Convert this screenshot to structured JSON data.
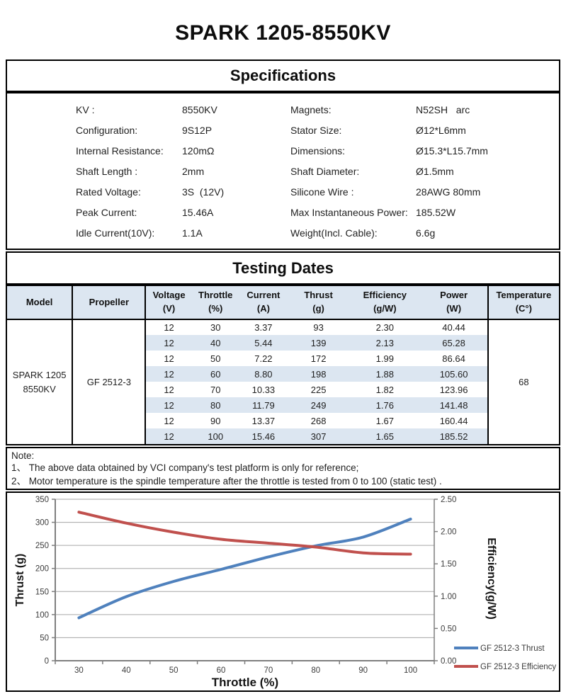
{
  "page_title": "SPARK 1205-8550KV",
  "specifications": {
    "section_title": "Specifications",
    "rows": [
      {
        "l_label": "KV :",
        "l_value": "8550KV",
        "r_label": "Magnets:",
        "r_value": "N52SH   arc"
      },
      {
        "l_label": "Configuration:",
        "l_value": "9S12P",
        "r_label": "Stator Size:",
        "r_value": "Ø12*L6mm"
      },
      {
        "l_label": "Internal Resistance:",
        "l_value": "120mΩ",
        "r_label": "Dimensions:",
        "r_value": "Ø15.3*L15.7mm"
      },
      {
        "l_label": "Shaft Length :",
        "l_value": "2mm",
        "r_label": "Shaft Diameter:",
        "r_value": "Ø1.5mm"
      },
      {
        "l_label": "Rated Voltage:",
        "l_value": "3S  (12V)",
        "r_label": "Silicone Wire :",
        "r_value": "28AWG 80mm"
      },
      {
        "l_label": "Peak Current:",
        "l_value": "15.46A",
        "r_label": "Max Instantaneous Power:",
        "r_value": "185.52W"
      },
      {
        "l_label": "Idle Current(10V):",
        "l_value": "1.1A",
        "r_label": "Weight(Incl. Cable):",
        "r_value": "6.6g"
      }
    ]
  },
  "testing": {
    "section_title": "Testing Dates",
    "headers": [
      {
        "l1": "Model",
        "l2": ""
      },
      {
        "l1": "Propeller",
        "l2": ""
      },
      {
        "l1": "Voltage",
        "l2": "(V)"
      },
      {
        "l1": "Throttle",
        "l2": "(%)"
      },
      {
        "l1": "Current",
        "l2": "(A)"
      },
      {
        "l1": "Thrust",
        "l2": "(g)"
      },
      {
        "l1": "Efficiency",
        "l2": "(g/W)"
      },
      {
        "l1": "Power",
        "l2": "(W)"
      },
      {
        "l1": "Temperature",
        "l2": "(C°)"
      }
    ],
    "model_lines": [
      "SPARK 1205",
      "8550KV"
    ],
    "propeller": "GF 2512-3",
    "temperature": "68",
    "rows": [
      [
        "12",
        "30",
        "3.37",
        "93",
        "2.30",
        "40.44"
      ],
      [
        "12",
        "40",
        "5.44",
        "139",
        "2.13",
        "65.28"
      ],
      [
        "12",
        "50",
        "7.22",
        "172",
        "1.99",
        "86.64"
      ],
      [
        "12",
        "60",
        "8.80",
        "198",
        "1.88",
        "105.60"
      ],
      [
        "12",
        "70",
        "10.33",
        "225",
        "1.82",
        "123.96"
      ],
      [
        "12",
        "80",
        "11.79",
        "249",
        "1.76",
        "141.48"
      ],
      [
        "12",
        "90",
        "13.37",
        "268",
        "1.67",
        "160.44"
      ],
      [
        "12",
        "100",
        "15.46",
        "307",
        "1.65",
        "185.52"
      ]
    ],
    "stripe_color": "#dce6f1",
    "header_bg_color": "#dce6f1"
  },
  "note": {
    "title": "Note:",
    "lines": [
      "1、 The above data obtained by VCI company's test platform is only for reference;",
      "2、 Motor temperature is the spindle temperature after the throttle is tested from 0 to 100  (static test) ."
    ]
  },
  "chart_data": {
    "type": "line",
    "title": "",
    "x_categories": [
      30,
      40,
      50,
      60,
      70,
      80,
      90,
      100
    ],
    "series": [
      {
        "name": "GF 2512-3 Thrust",
        "axis": "left",
        "color": "#4F81BD",
        "values": [
          93,
          139,
          172,
          198,
          225,
          249,
          268,
          307
        ]
      },
      {
        "name": "GF 2512-3 Efficiency",
        "axis": "right",
        "color": "#C0504D",
        "values": [
          2.3,
          2.13,
          1.99,
          1.88,
          1.82,
          1.76,
          1.67,
          1.65
        ]
      }
    ],
    "xlabel": "Throttle  (%)",
    "ylabel_left": "Thrust  (g)",
    "ylabel_right": "Efficiency(g/W)",
    "ylim_left": [
      0,
      350
    ],
    "ytick_step_left": 50,
    "ytick_decimals_left": 0,
    "ylim_right": [
      0,
      2.5
    ],
    "ytick_step_right": 0.5,
    "ytick_decimals_right": 2,
    "grid": true,
    "grid_color": "#a6a6a6",
    "axis_color": "#7f7f7f",
    "legend_position": "right-bottom"
  }
}
